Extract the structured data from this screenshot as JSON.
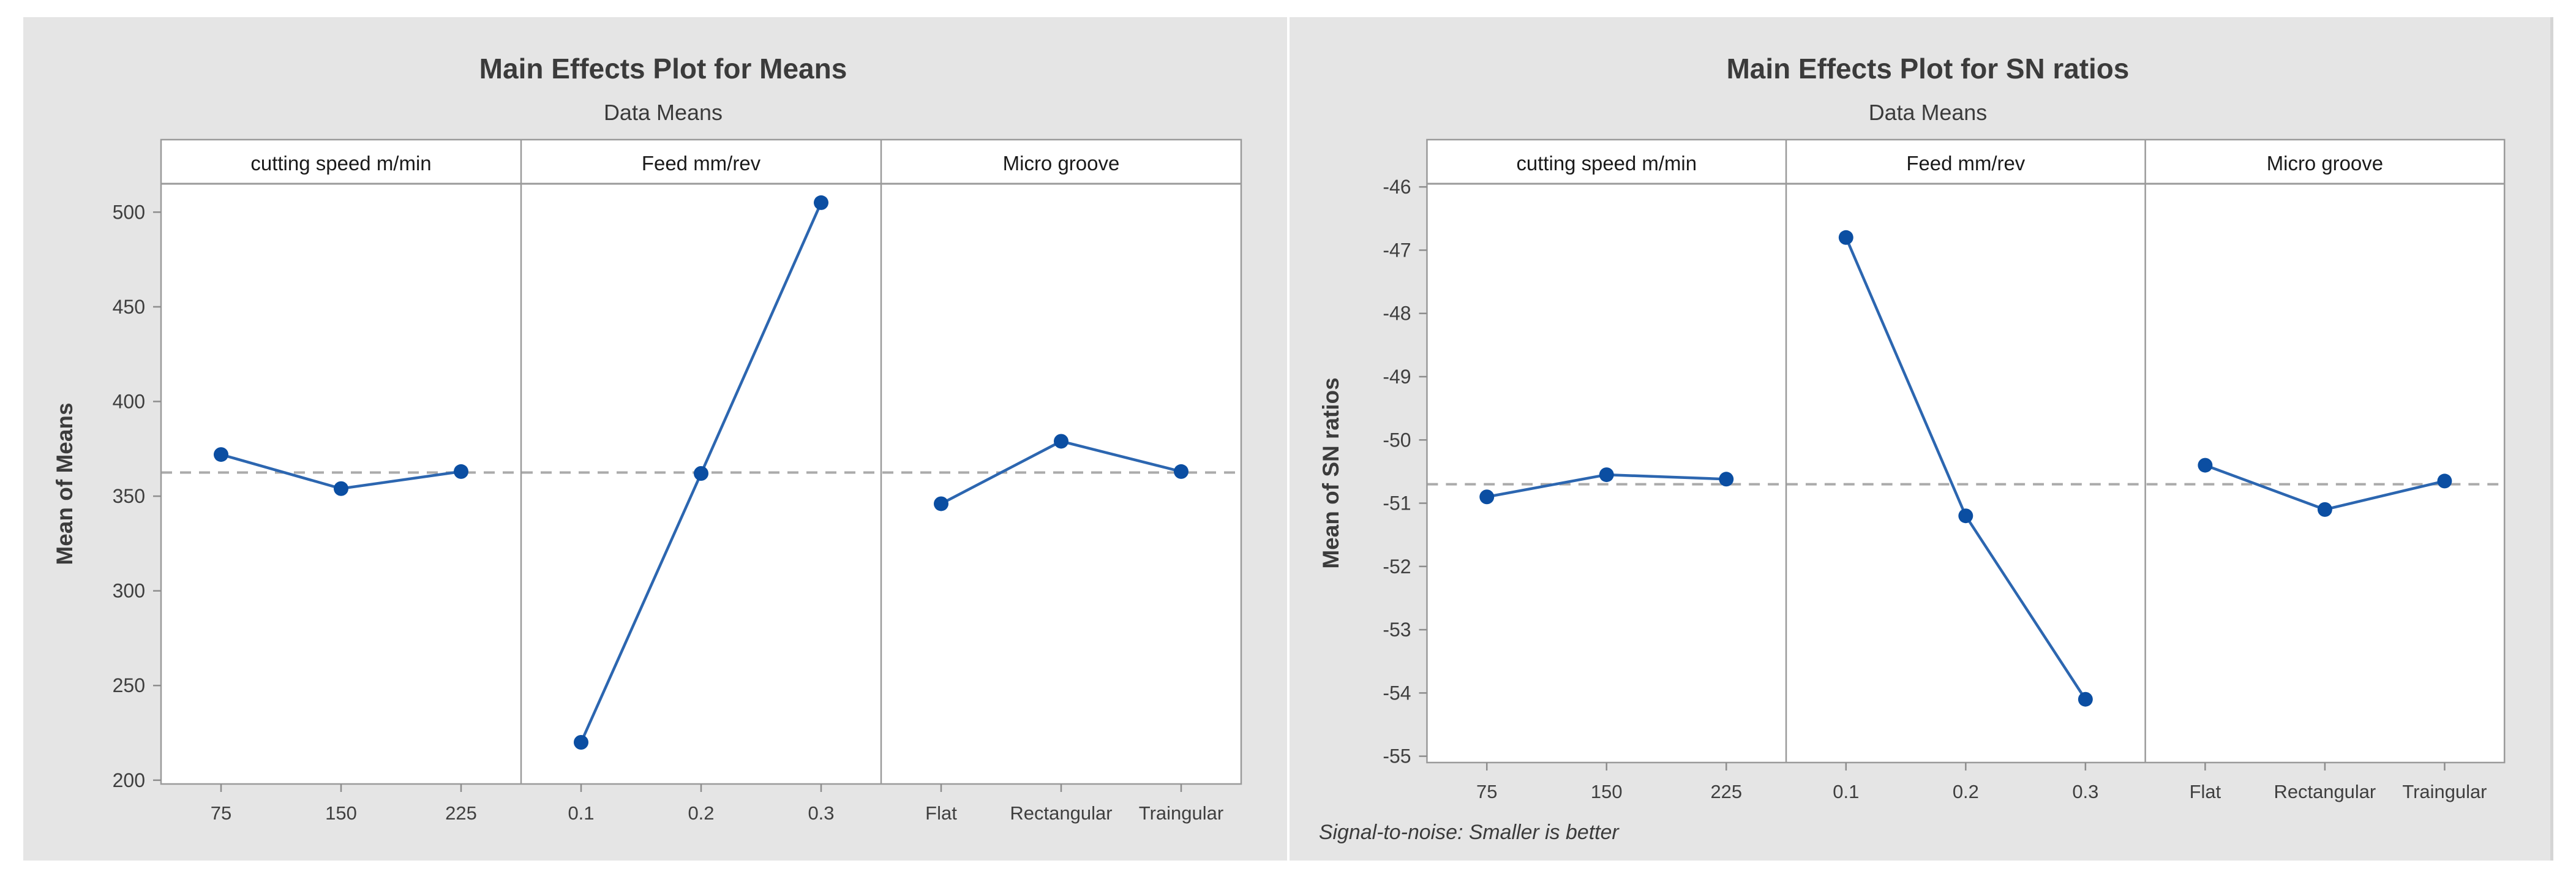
{
  "page": {
    "background": "#ffffff",
    "figure_background": "#e5e5e5"
  },
  "colors": {
    "plot_bg": "#ffffff",
    "marker": "#0b4ea2",
    "line": "#2c66b0",
    "refline": "#ababab",
    "border": "#9a9a9a",
    "tick": "#8d8d8d",
    "title_text": "#3b3b3b",
    "header_text": "#1a1a1a",
    "tick_text": "#3f3f3f"
  },
  "chart_data": [
    {
      "type": "line",
      "title": "Main Effects Plot for Means",
      "subtitle": "Data Means",
      "ylabel": "Mean of Means",
      "ylim": [
        198,
        515
      ],
      "yticks": [
        500,
        450,
        400,
        350,
        300,
        250,
        200
      ],
      "reference_line": 362.5,
      "grid": false,
      "legend": "none",
      "panels": [
        {
          "header": "cutting speed m/min",
          "categories": [
            "75",
            "150",
            "225"
          ],
          "values": [
            372,
            354,
            363
          ]
        },
        {
          "header": "Feed mm/rev",
          "categories": [
            "0.1",
            "0.2",
            "0.3"
          ],
          "values": [
            220,
            362,
            505
          ]
        },
        {
          "header": "Micro groove",
          "categories": [
            "Flat",
            "Rectangular",
            "Traingular"
          ],
          "values": [
            346,
            379,
            363
          ]
        }
      ],
      "footnote": null
    },
    {
      "type": "line",
      "title": "Main Effects Plot for SN ratios",
      "subtitle": "Data Means",
      "ylabel": "Mean of SN ratios",
      "ylim": [
        -55.1,
        -45.95
      ],
      "yticks": [
        -46,
        -47,
        -48,
        -49,
        -50,
        -51,
        -52,
        -53,
        -54,
        -55
      ],
      "reference_line": -50.7,
      "grid": false,
      "legend": "none",
      "panels": [
        {
          "header": "cutting speed m/min",
          "categories": [
            "75",
            "150",
            "225"
          ],
          "values": [
            -50.9,
            -50.55,
            -50.62
          ]
        },
        {
          "header": "Feed mm/rev",
          "categories": [
            "0.1",
            "0.2",
            "0.3"
          ],
          "values": [
            -46.8,
            -51.2,
            -54.1
          ]
        },
        {
          "header": "Micro groove",
          "categories": [
            "Flat",
            "Rectangular",
            "Traingular"
          ],
          "values": [
            -50.4,
            -51.1,
            -50.65
          ]
        }
      ],
      "footnote": "Signal-to-noise: Smaller is better"
    }
  ]
}
